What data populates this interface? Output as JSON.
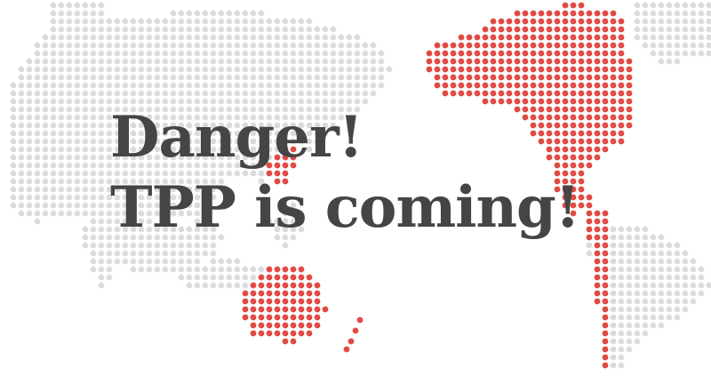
{
  "headline": {
    "line1": "Danger!",
    "line2": "TPP is coming!"
  },
  "colors": {
    "background": "#ffffff",
    "dot_gray": "#d9dbdd",
    "dot_red": "#e24a44",
    "text": "#454545"
  },
  "map": {
    "description_icon": "dotted-world-map",
    "highlighted_regions": [
      "north-america",
      "south-america-west-coast",
      "australia",
      "new-zealand",
      "east-asia-coast"
    ]
  }
}
